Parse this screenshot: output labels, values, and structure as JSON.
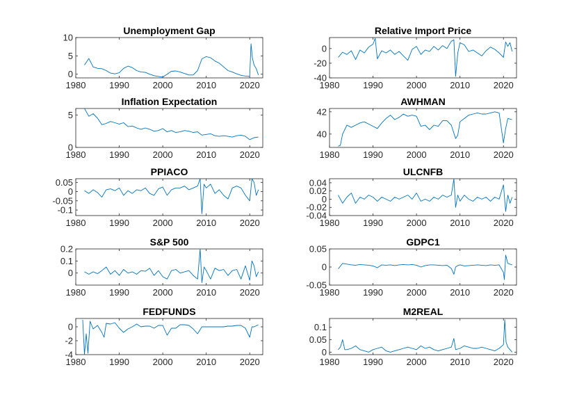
{
  "chart_data": [
    {
      "type": "line",
      "title": "Unemployment Gap",
      "xlim": [
        1980,
        2023
      ],
      "ylim": [
        -1,
        10
      ],
      "xticks": [
        1980,
        1990,
        2000,
        2010,
        2020
      ],
      "xtick_labels": [
        "1980",
        "1990",
        "2000",
        "2010",
        "2020"
      ],
      "yticks": [
        0,
        5,
        10
      ],
      "ytick_labels": [
        "0",
        "5",
        "10"
      ],
      "x": [
        1982,
        1983,
        1984,
        1985,
        1986,
        1987,
        1988,
        1989,
        1990,
        1991,
        1992,
        1993,
        1994,
        1995,
        1996,
        1997,
        1998,
        1999,
        2000,
        2001,
        2002,
        2003,
        2004,
        2005,
        2006,
        2007,
        2008,
        2009,
        2010,
        2011,
        2012,
        2013,
        2014,
        2015,
        2016,
        2017,
        2018,
        2019,
        2020,
        2020.3,
        2020.6,
        2021,
        2021.5,
        2022
      ],
      "y": [
        2.5,
        4.3,
        2.0,
        1.6,
        1.5,
        1.0,
        0.3,
        0.1,
        0.4,
        1.6,
        2.2,
        1.8,
        1.0,
        0.6,
        0.5,
        0.0,
        -0.4,
        -0.6,
        -0.8,
        0.0,
        0.8,
        0.9,
        0.6,
        0.2,
        -0.2,
        -0.2,
        1.0,
        4.2,
        4.8,
        4.5,
        3.6,
        3.0,
        2.0,
        1.0,
        0.6,
        0.1,
        -0.3,
        -0.5,
        -0.6,
        8.3,
        4.5,
        2.5,
        1.5,
        -0.2
      ]
    },
    {
      "type": "line",
      "title": "Relative Import Price",
      "xlim": [
        1980,
        2023
      ],
      "ylim": [
        -40,
        15
      ],
      "xticks": [
        1980,
        1990,
        2000,
        2010,
        2020
      ],
      "xtick_labels": [
        "1980",
        "1990",
        "2000",
        "2010",
        "2020"
      ],
      "yticks": [
        -40,
        -20,
        0
      ],
      "ytick_labels": [
        "-40",
        "-20",
        "0"
      ],
      "x": [
        1982,
        1983,
        1984,
        1985,
        1986,
        1987,
        1988,
        1989,
        1990,
        1990.5,
        1991,
        1992,
        1993,
        1994,
        1995,
        1996,
        1997,
        1998,
        1999,
        2000,
        2001,
        2002,
        2003,
        2004,
        2005,
        2006,
        2007,
        2008,
        2008.6,
        2009,
        2009.5,
        2010,
        2011,
        2012,
        2013,
        2014,
        2015,
        2016,
        2017,
        2018,
        2019,
        2020,
        2020.5,
        2021,
        2021.5,
        2022
      ],
      "y": [
        -12,
        -5,
        -8,
        -3,
        -15,
        -2,
        -6,
        2,
        6,
        14,
        -14,
        -3,
        -6,
        -2,
        -8,
        -4,
        -10,
        -16,
        -1,
        3,
        -8,
        -2,
        -4,
        3,
        -2,
        4,
        0,
        10,
        12,
        -38,
        -6,
        8,
        5,
        -4,
        -2,
        -6,
        -10,
        -3,
        2,
        -1,
        -6,
        -12,
        9,
        3,
        8,
        -4
      ]
    },
    {
      "type": "line",
      "title": "Inflation Expectation",
      "xlim": [
        1980,
        2023
      ],
      "ylim": [
        0,
        6
      ],
      "xticks": [
        1980,
        1990,
        2000,
        2010,
        2020
      ],
      "xtick_labels": [
        "1980",
        "1990",
        "2000",
        "2010",
        "2020"
      ],
      "yticks": [
        0,
        5
      ],
      "ytick_labels": [
        "0",
        "5"
      ],
      "x": [
        1982,
        1983,
        1984,
        1985,
        1986,
        1987,
        1988,
        1989,
        1990,
        1991,
        1992,
        1993,
        1994,
        1995,
        1996,
        1997,
        1998,
        1999,
        2000,
        2001,
        2002,
        2003,
        2004,
        2005,
        2006,
        2007,
        2008,
        2009,
        2010,
        2011,
        2012,
        2013,
        2014,
        2015,
        2016,
        2017,
        2018,
        2019,
        2020,
        2021,
        2022
      ],
      "y": [
        6.0,
        4.8,
        5.2,
        4.5,
        3.5,
        3.7,
        4.0,
        3.8,
        3.6,
        3.8,
        3.2,
        3.3,
        3.0,
        2.8,
        3.0,
        2.8,
        2.5,
        2.6,
        2.9,
        2.4,
        2.6,
        2.3,
        2.4,
        2.6,
        2.5,
        2.3,
        2.4,
        1.9,
        2.0,
        2.1,
        1.8,
        1.7,
        1.8,
        1.7,
        1.6,
        1.8,
        1.9,
        1.7,
        1.2,
        1.5,
        1.6
      ]
    },
    {
      "type": "line",
      "title": "AWHMAN",
      "xlim": [
        1980,
        2023
      ],
      "ylim": [
        38.8,
        42.3
      ],
      "xticks": [
        1980,
        1990,
        2000,
        2010,
        2020
      ],
      "xtick_labels": [
        "1980",
        "1990",
        "2000",
        "2010",
        "2020"
      ],
      "yticks": [
        40,
        42
      ],
      "ytick_labels": [
        "40",
        "42"
      ],
      "x": [
        1982,
        1982.5,
        1983,
        1984,
        1985,
        1986,
        1987,
        1988,
        1989,
        1990,
        1991,
        1992,
        1993,
        1994,
        1995,
        1996,
        1997,
        1998,
        1999,
        2000,
        2001,
        2002,
        2003,
        2004,
        2005,
        2006,
        2007,
        2008,
        2009,
        2009.5,
        2010,
        2011,
        2012,
        2013,
        2014,
        2015,
        2016,
        2017,
        2018,
        2019,
        2020,
        2020.5,
        2021,
        2022
      ],
      "y": [
        38.9,
        39.0,
        40.0,
        40.8,
        40.6,
        40.8,
        41.0,
        41.1,
        40.9,
        40.7,
        40.5,
        41.0,
        41.4,
        41.7,
        41.3,
        41.5,
        41.8,
        41.6,
        41.7,
        41.6,
        40.7,
        40.8,
        40.4,
        40.8,
        40.7,
        41.2,
        41.2,
        40.8,
        39.6,
        39.9,
        41.1,
        41.4,
        41.7,
        41.8,
        41.9,
        41.8,
        41.8,
        41.9,
        42.0,
        41.9,
        39.2,
        40.5,
        41.4,
        41.3
      ]
    },
    {
      "type": "line",
      "title": "PPIACO",
      "xlim": [
        1980,
        2023
      ],
      "ylim": [
        -0.13,
        0.07
      ],
      "xticks": [
        1980,
        1990,
        2000,
        2010,
        2020
      ],
      "xtick_labels": [
        "1980",
        "1990",
        "2000",
        "2010",
        "2020"
      ],
      "yticks": [
        -0.1,
        -0.05,
        0,
        0.05
      ],
      "ytick_labels": [
        "-0.1",
        "-0.05",
        "0",
        "0.05"
      ],
      "x": [
        1982,
        1983,
        1984,
        1985,
        1986,
        1987,
        1988,
        1989,
        1990,
        1991,
        1992,
        1993,
        1994,
        1995,
        1996,
        1997,
        1998,
        1999,
        2000,
        2001,
        2002,
        2003,
        2004,
        2005,
        2006,
        2007,
        2008,
        2008.6,
        2009,
        2009.5,
        2010,
        2011,
        2012,
        2013,
        2014,
        2015,
        2016,
        2017,
        2018,
        2019,
        2020,
        2020.5,
        2021,
        2021.5,
        2022
      ],
      "y": [
        0.005,
        -0.01,
        0.01,
        -0.005,
        -0.03,
        0.01,
        0.015,
        0.005,
        0.02,
        -0.02,
        0.005,
        -0.01,
        0.01,
        0.005,
        0.02,
        -0.01,
        -0.02,
        0.015,
        0.025,
        -0.02,
        0.01,
        0.02,
        0.02,
        0.03,
        0.01,
        0.02,
        0.03,
        0.07,
        -0.12,
        0.04,
        0.02,
        0.04,
        -0.01,
        0.01,
        -0.02,
        -0.04,
        0.02,
        0.03,
        0.02,
        -0.02,
        -0.05,
        0.07,
        0.05,
        -0.02,
        0.01
      ]
    },
    {
      "type": "line",
      "title": "ULCNFB",
      "xlim": [
        1980,
        2023
      ],
      "ylim": [
        -0.04,
        0.05
      ],
      "xticks": [
        1980,
        1990,
        2000,
        2010,
        2020
      ],
      "xtick_labels": [
        "1980",
        "1990",
        "2000",
        "2010",
        "2020"
      ],
      "yticks": [
        -0.04,
        -0.02,
        0,
        0.02,
        0.04
      ],
      "ytick_labels": [
        "-0.04",
        "-0.02",
        "0",
        "0.02",
        "0.04"
      ],
      "x": [
        1982,
        1983,
        1984,
        1985,
        1986,
        1987,
        1988,
        1989,
        1990,
        1991,
        1992,
        1993,
        1994,
        1995,
        1996,
        1997,
        1998,
        1999,
        2000,
        2001,
        2002,
        2003,
        2004,
        2005,
        2006,
        2007,
        2008,
        2008.6,
        2009,
        2009.5,
        2010,
        2011,
        2012,
        2013,
        2014,
        2015,
        2016,
        2017,
        2018,
        2019,
        2020,
        2020.5,
        2021,
        2021.5,
        2022
      ],
      "y": [
        0.01,
        -0.01,
        0.005,
        0.015,
        -0.01,
        0.005,
        0.0,
        0.01,
        0.005,
        -0.005,
        0.005,
        0.0,
        -0.005,
        0.005,
        0.0,
        0.005,
        0.01,
        0.0,
        0.015,
        -0.005,
        0.0,
        -0.005,
        0.005,
        0.0,
        0.01,
        0.005,
        0.01,
        0.05,
        -0.02,
        0.01,
        -0.005,
        0.01,
        0.0,
        -0.005,
        0.005,
        0.0,
        0.005,
        -0.005,
        0.005,
        0.0,
        0.035,
        -0.03,
        0.01,
        -0.01,
        0.005
      ]
    },
    {
      "type": "line",
      "title": "S&P 500",
      "xlim": [
        1980,
        2023
      ],
      "ylim": [
        -0.1,
        0.2
      ],
      "xticks": [
        1980,
        1990,
        2000,
        2010,
        2020
      ],
      "xtick_labels": [
        "1980",
        "1990",
        "2000",
        "2010",
        "2020"
      ],
      "yticks": [
        0,
        0.1,
        0.2
      ],
      "ytick_labels": [
        "0",
        "0.1",
        "0.2"
      ],
      "x": [
        1982,
        1983,
        1984,
        1985,
        1986,
        1987,
        1988,
        1989,
        1990,
        1991,
        1992,
        1993,
        1994,
        1995,
        1996,
        1997,
        1998,
        1999,
        2000,
        2001,
        2002,
        2003,
        2004,
        2005,
        2006,
        2007,
        2008,
        2008.6,
        2009,
        2009.5,
        2010,
        2011,
        2012,
        2013,
        2014,
        2015,
        2016,
        2017,
        2018,
        2019,
        2020,
        2020.5,
        2021,
        2021.5,
        2022
      ],
      "y": [
        0.01,
        -0.01,
        0.01,
        -0.005,
        0.02,
        0.05,
        -0.01,
        0.02,
        -0.02,
        0.03,
        0.0,
        0.01,
        -0.01,
        0.02,
        0.015,
        0.04,
        -0.02,
        0.02,
        -0.03,
        -0.05,
        0.02,
        0.03,
        0.0,
        0.01,
        0.02,
        -0.02,
        -0.05,
        0.2,
        -0.08,
        0.05,
        0.02,
        -0.05,
        0.04,
        0.02,
        0.03,
        -0.02,
        0.02,
        0.03,
        -0.05,
        0.06,
        -0.06,
        0.1,
        0.06,
        -0.03,
        0.01
      ]
    },
    {
      "type": "line",
      "title": "GDPC1",
      "xlim": [
        1980,
        2023
      ],
      "ylim": [
        -0.05,
        0.05
      ],
      "xticks": [
        1980,
        1990,
        2000,
        2010,
        2020
      ],
      "xtick_labels": [
        "1980",
        "1990",
        "2000",
        "2010",
        "2020"
      ],
      "yticks": [
        -0.05,
        0,
        0.05
      ],
      "ytick_labels": [
        "-0.05",
        "0",
        "0.05"
      ],
      "x": [
        1982,
        1983,
        1984,
        1985,
        1986,
        1987,
        1988,
        1989,
        1990,
        1991,
        1992,
        1993,
        1994,
        1995,
        1996,
        1997,
        1998,
        1999,
        2000,
        2001,
        2002,
        2003,
        2004,
        2005,
        2006,
        2007,
        2008,
        2008.6,
        2009,
        2009.5,
        2010,
        2011,
        2012,
        2013,
        2014,
        2015,
        2016,
        2017,
        2018,
        2019,
        2020,
        2020.2,
        2020.5,
        2021,
        2022
      ],
      "y": [
        -0.005,
        0.01,
        0.008,
        0.006,
        0.005,
        0.007,
        0.006,
        0.005,
        0.003,
        -0.002,
        0.006,
        0.005,
        0.006,
        0.004,
        0.006,
        0.007,
        0.006,
        0.007,
        0.005,
        0.0,
        0.004,
        0.006,
        0.006,
        0.005,
        0.004,
        0.005,
        -0.004,
        -0.02,
        0.0,
        0.004,
        0.006,
        0.003,
        0.004,
        0.005,
        0.006,
        0.005,
        0.004,
        0.006,
        0.005,
        0.006,
        -0.015,
        -0.035,
        0.033,
        0.01,
        0.006
      ]
    },
    {
      "type": "line",
      "title": "FEDFUNDS",
      "xlim": [
        1980,
        2023
      ],
      "ylim": [
        -4,
        1.2
      ],
      "xticks": [
        1980,
        1990,
        2000,
        2010,
        2020
      ],
      "xtick_labels": [
        "1980",
        "1990",
        "2000",
        "2010",
        "2020"
      ],
      "yticks": [
        -4,
        -2,
        0
      ],
      "ytick_labels": [
        "-4",
        "-2",
        "0"
      ],
      "x": [
        1981.6,
        1982,
        1982.4,
        1982.8,
        1983.3,
        1984,
        1985,
        1986,
        1986.5,
        1987,
        1988,
        1989,
        1990,
        1991,
        1992,
        1993,
        1994,
        1995,
        1996,
        1997,
        1998,
        1999,
        2000,
        2001,
        2002,
        2003,
        2004,
        2005,
        2006,
        2007,
        2008,
        2009,
        2010,
        2011,
        2012,
        2013,
        2014,
        2015,
        2016,
        2017,
        2018,
        2019,
        2020,
        2020.5,
        2021,
        2022
      ],
      "y": [
        1.0,
        -4.0,
        -1.0,
        -3.8,
        0.8,
        -0.3,
        0.2,
        -0.8,
        -1.5,
        0.5,
        0.4,
        0.6,
        -0.2,
        -0.8,
        -0.3,
        0.0,
        0.4,
        0.0,
        0.1,
        0.1,
        -0.2,
        0.2,
        0.2,
        -1.2,
        -0.2,
        -0.2,
        0.3,
        0.3,
        0.2,
        -0.3,
        -1.0,
        0.0,
        0.0,
        0.0,
        0.0,
        0.0,
        0.0,
        0.1,
        0.1,
        0.2,
        0.2,
        -0.2,
        -1.5,
        0.0,
        0.0,
        0.3
      ]
    },
    {
      "type": "line",
      "title": "M2REAL",
      "xlim": [
        1980,
        2023
      ],
      "ylim": [
        -0.01,
        0.135
      ],
      "xticks": [
        1980,
        1990,
        2000,
        2010,
        2020
      ],
      "xtick_labels": [
        "1980",
        "1990",
        "2000",
        "2010",
        "2020"
      ],
      "yticks": [
        0,
        0.05,
        0.1
      ],
      "ytick_labels": [
        "0",
        "0.05",
        "0.1"
      ],
      "x": [
        1982,
        1982.5,
        1983,
        1983.5,
        1984,
        1985,
        1986,
        1987,
        1988,
        1989,
        1990,
        1991,
        1992,
        1993,
        1994,
        1995,
        1996,
        1997,
        1998,
        1999,
        2000,
        2001,
        2002,
        2003,
        2004,
        2005,
        2006,
        2007,
        2008,
        2008.6,
        2009,
        2010,
        2011,
        2012,
        2013,
        2014,
        2015,
        2016,
        2017,
        2018,
        2019,
        2020,
        2020.3,
        2020.6,
        2021,
        2022
      ],
      "y": [
        0.01,
        0.02,
        0.05,
        0.01,
        0.01,
        0.015,
        0.025,
        0.01,
        0.005,
        0.0,
        0.01,
        0.015,
        0.02,
        0.005,
        0.0,
        0.005,
        0.01,
        0.015,
        0.02,
        0.015,
        0.01,
        0.025,
        0.015,
        0.02,
        0.01,
        0.005,
        0.01,
        0.015,
        0.02,
        0.055,
        0.01,
        0.015,
        0.025,
        0.02,
        0.015,
        0.015,
        0.02,
        0.015,
        0.01,
        0.005,
        0.015,
        0.03,
        0.13,
        0.04,
        0.02,
        0.0
      ]
    }
  ]
}
